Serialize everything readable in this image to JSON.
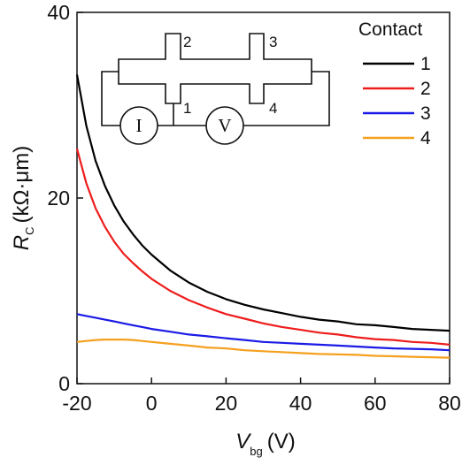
{
  "chart_data": {
    "type": "line",
    "title": "",
    "xlabel": {
      "main": "V",
      "sub": "bg",
      "unit": "(V)"
    },
    "ylabel": {
      "main": "R",
      "sub": "C",
      "unit": "(kΩ·μm)"
    },
    "xlim": [
      -20,
      80
    ],
    "ylim": [
      0,
      40
    ],
    "xticks": [
      "-20",
      "0",
      "20",
      "40",
      "60",
      "80"
    ],
    "yticks": [
      "0",
      "20",
      "40"
    ],
    "x": [
      -20,
      -17.5,
      -15,
      -12.5,
      -10,
      -7.5,
      -5,
      -2.5,
      0,
      5,
      10,
      15,
      20,
      25,
      30,
      35,
      40,
      45,
      50,
      55,
      60,
      65,
      70,
      75,
      80
    ],
    "series": [
      {
        "name": "1",
        "color": "#000000",
        "values": [
          33.3,
          27.8,
          24.0,
          21.3,
          19.2,
          17.5,
          16.1,
          14.9,
          13.9,
          12.2,
          10.9,
          9.9,
          9.1,
          8.5,
          8.0,
          7.6,
          7.2,
          6.9,
          6.7,
          6.4,
          6.3,
          6.1,
          5.9,
          5.8,
          5.7
        ]
      },
      {
        "name": "2",
        "color": "#ee1c1c",
        "values": [
          25.3,
          21.6,
          18.9,
          16.9,
          15.3,
          14.0,
          13.0,
          12.1,
          11.3,
          10.0,
          9.0,
          8.2,
          7.5,
          7.0,
          6.5,
          6.1,
          5.8,
          5.5,
          5.3,
          5.0,
          4.8,
          4.7,
          4.5,
          4.4,
          4.2
        ]
      },
      {
        "name": "3",
        "color": "#1a1ae6",
        "values": [
          7.5,
          7.3,
          7.1,
          6.9,
          6.7,
          6.5,
          6.3,
          6.1,
          5.9,
          5.6,
          5.3,
          5.1,
          4.9,
          4.7,
          4.5,
          4.4,
          4.3,
          4.2,
          4.1,
          4.0,
          3.9,
          3.8,
          3.75,
          3.7,
          3.6
        ]
      },
      {
        "name": "4",
        "color": "#f5a01e",
        "values": [
          4.5,
          4.6,
          4.7,
          4.75,
          4.75,
          4.75,
          4.7,
          4.6,
          4.5,
          4.3,
          4.1,
          3.9,
          3.8,
          3.6,
          3.5,
          3.4,
          3.3,
          3.2,
          3.15,
          3.1,
          3.0,
          2.95,
          2.9,
          2.85,
          2.8
        ]
      }
    ],
    "legend": {
      "title": "Contact",
      "position": "top-right"
    },
    "grid": false
  },
  "inset": {
    "contact_labels": [
      "1",
      "2",
      "3",
      "4"
    ],
    "current_meter_label": "I",
    "voltage_meter_label": "V"
  }
}
